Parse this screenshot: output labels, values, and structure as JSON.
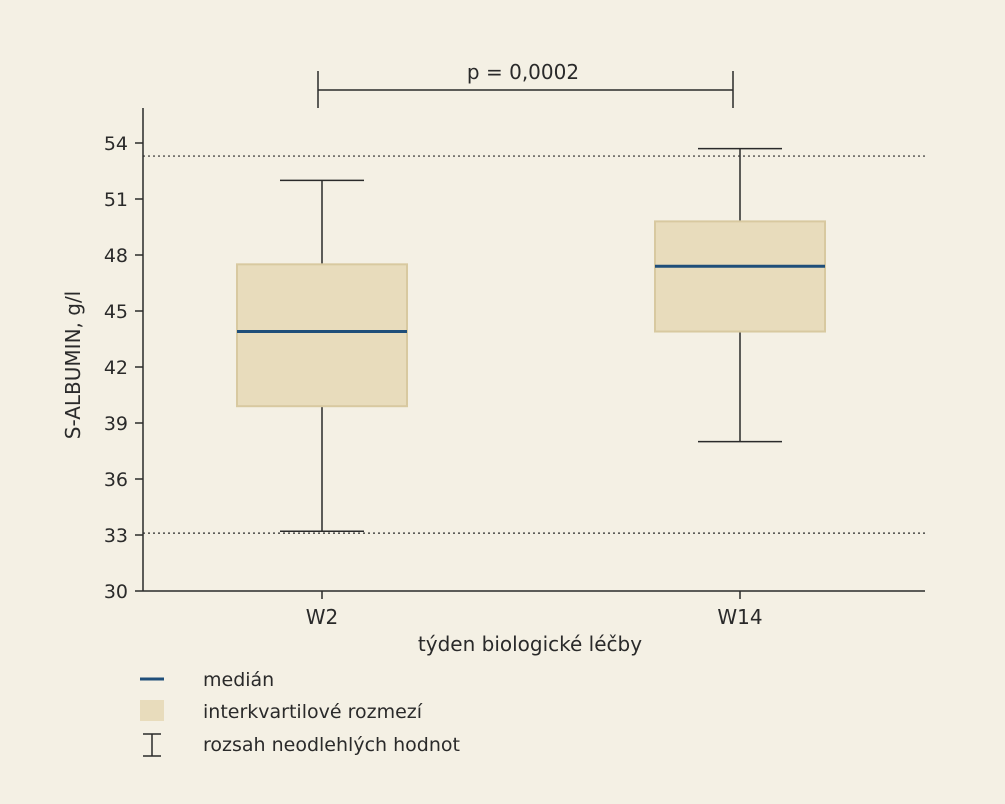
{
  "chart_data": {
    "type": "boxplot",
    "ylabel": "S-ALBUMIN, g/l",
    "xlabel": "týden biologické léčby",
    "ylim": [
      30,
      56
    ],
    "yticks": [
      30,
      33,
      36,
      39,
      42,
      45,
      48,
      51,
      54
    ],
    "categories": [
      "W2",
      "W14"
    ],
    "boxes": [
      {
        "category": "W2",
        "whisker_low": 33.2,
        "q1": 39.9,
        "median": 43.9,
        "q3": 47.5,
        "whisker_high": 52.0
      },
      {
        "category": "W14",
        "whisker_low": 38.0,
        "q1": 43.9,
        "median": 47.4,
        "q3": 49.8,
        "whisker_high": 53.7
      }
    ],
    "reference_lines": [
      33.1,
      53.3
    ],
    "significance": {
      "from": "W2",
      "to": "W14",
      "label": "p = 0,0002"
    },
    "grid": false,
    "legend": {
      "position": "bottom-left",
      "items": [
        {
          "marker": "line",
          "label": "medián"
        },
        {
          "marker": "box",
          "label": "interkvartilové rozmezí"
        },
        {
          "marker": "whisker",
          "label": "rozsah neodlehlých hodnot"
        }
      ]
    },
    "colors": {
      "background": "#f4f0e4",
      "box_fill": "#e8dcbc",
      "box_stroke": "#d8c9a0",
      "median": "#1f4e79",
      "axis": "#2a2a2a"
    }
  }
}
